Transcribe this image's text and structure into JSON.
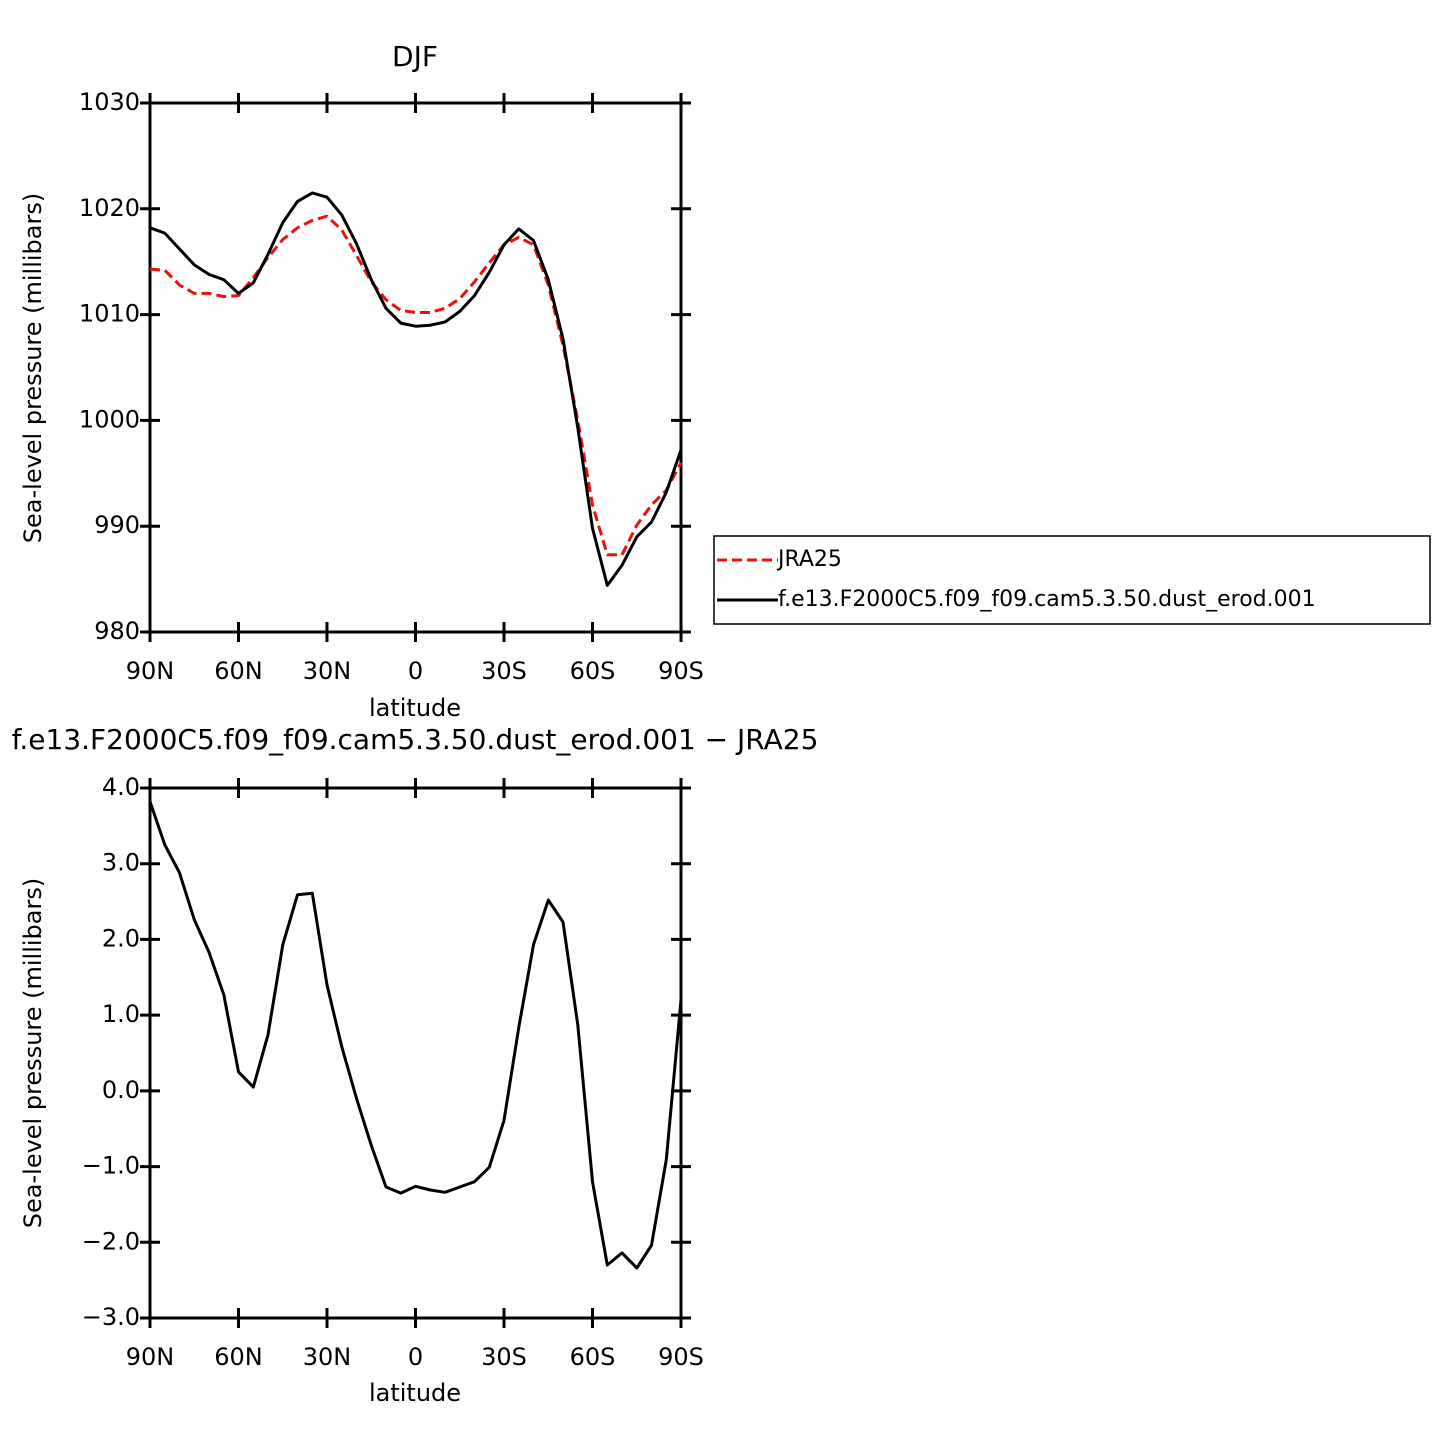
{
  "chart_data": [
    {
      "type": "line",
      "title": "DJF",
      "x_label": "latitude",
      "y_label": "Sea-level pressure (millibars)",
      "x": [
        90,
        85,
        80,
        75,
        70,
        65,
        60,
        55,
        50,
        45,
        40,
        35,
        30,
        25,
        20,
        15,
        10,
        5,
        0,
        -5,
        -10,
        -15,
        -20,
        -25,
        -30,
        -35,
        -40,
        -45,
        -50,
        -55,
        -60,
        -65,
        -70,
        -75,
        -80,
        -85,
        -90
      ],
      "xlim": [
        90,
        -90
      ],
      "xticks": [
        {
          "value": 90,
          "label": "90N"
        },
        {
          "value": 60,
          "label": "60N"
        },
        {
          "value": 30,
          "label": "30N"
        },
        0,
        {
          "value": -30,
          "label": "30S"
        },
        {
          "value": -60,
          "label": "60S"
        },
        {
          "value": -90,
          "label": "90S"
        }
      ],
      "ylim": [
        980,
        1030
      ],
      "yticks": [
        980,
        990,
        1000,
        1010,
        1020,
        1030
      ],
      "legend": "right",
      "series": [
        {
          "name": "JRA25",
          "color": "#e8120c",
          "line_style": "dashed",
          "values": [
            1014.3,
            1014.2,
            1012.8,
            1012.0,
            1012.0,
            1011.7,
            1011.8,
            1013.5,
            1015.4,
            1017.1,
            1018.2,
            1018.9,
            1019.3,
            1018.0,
            1015.6,
            1013.1,
            1011.4,
            1010.4,
            1010.2,
            1010.2,
            1010.6,
            1011.5,
            1013.1,
            1014.9,
            1016.6,
            1017.3,
            1016.6,
            1012.8,
            1007.1,
            1000.0,
            992.0,
            987.3,
            987.3,
            990.1,
            992.0,
            993.4,
            996.0
          ]
        },
        {
          "name": "f.e13.F2000C5.f09_f09.cam5.3.50.dust_erod.001",
          "color": "#000000",
          "line_style": "solid",
          "values": [
            1018.2,
            1017.7,
            1016.2,
            1014.7,
            1013.8,
            1013.3,
            1012.0,
            1013.0,
            1015.7,
            1018.7,
            1020.7,
            1021.5,
            1021.1,
            1019.4,
            1016.7,
            1013.3,
            1010.6,
            1009.2,
            1008.9,
            1009.0,
            1009.3,
            1010.3,
            1011.8,
            1014.0,
            1016.6,
            1018.1,
            1017.0,
            1013.3,
            1007.7,
            999.3,
            989.8,
            984.4,
            986.3,
            989.0,
            990.4,
            993.2,
            997.2
          ]
        }
      ]
    },
    {
      "type": "line",
      "title": "f.e13.F2000C5.f09_f09.cam5.3.50.dust_erod.001 − JRA25",
      "x_label": "latitude",
      "y_label": "Sea-level pressure (millibars)",
      "x": [
        90,
        85,
        80,
        75,
        70,
        65,
        60,
        55,
        50,
        45,
        40,
        35,
        30,
        25,
        20,
        15,
        10,
        5,
        0,
        -5,
        -10,
        -15,
        -20,
        -25,
        -30,
        -35,
        -40,
        -45,
        -50,
        -55,
        -60,
        -65,
        -70,
        -75,
        -80,
        -85,
        -90
      ],
      "xlim": [
        90,
        -90
      ],
      "xticks": [
        {
          "value": 90,
          "label": "90N"
        },
        {
          "value": 60,
          "label": "60N"
        },
        {
          "value": 30,
          "label": "30N"
        },
        0,
        {
          "value": -30,
          "label": "30S"
        },
        {
          "value": -60,
          "label": "60S"
        },
        {
          "value": -90,
          "label": "90S"
        }
      ],
      "ylim": [
        -3,
        4
      ],
      "yticks": [
        {
          "value": -3,
          "label": "−3.0"
        },
        {
          "value": -2,
          "label": "−2.0"
        },
        {
          "value": -1,
          "label": "−1.0"
        },
        {
          "value": 0,
          "label": "0.0"
        },
        {
          "value": 1,
          "label": "1.0"
        },
        {
          "value": 2,
          "label": "2.0"
        },
        {
          "value": 3,
          "label": "3.0"
        },
        {
          "value": 4,
          "label": "4.0"
        }
      ],
      "series": [
        {
          "color": "#000000",
          "line_style": "solid",
          "values": [
            3.82,
            3.25,
            2.88,
            2.26,
            1.83,
            1.27,
            0.25,
            0.05,
            0.74,
            1.93,
            2.59,
            2.61,
            1.4,
            0.58,
            -0.1,
            -0.72,
            -1.27,
            -1.35,
            -1.26,
            -1.31,
            -1.34,
            -1.27,
            -1.2,
            -1.01,
            -0.39,
            0.84,
            1.93,
            2.52,
            2.23,
            0.87,
            -1.2,
            -2.3,
            -2.14,
            -2.34,
            -2.04,
            -0.91,
            1.2
          ]
        }
      ]
    }
  ]
}
